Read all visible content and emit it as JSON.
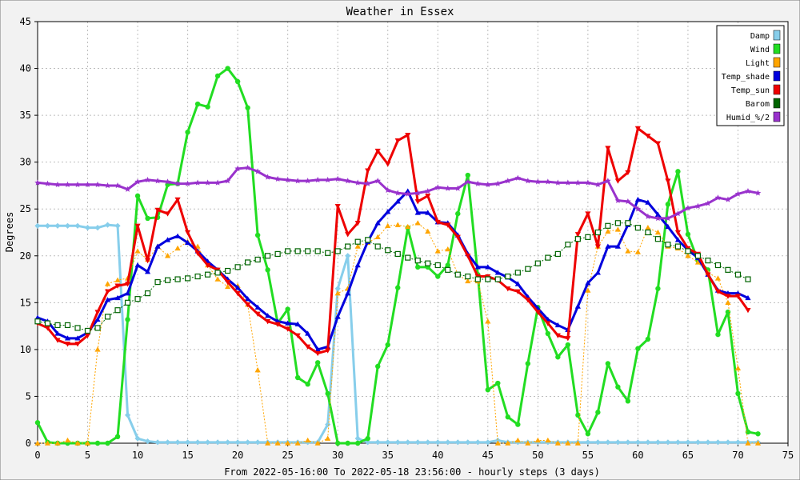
{
  "chart_data": {
    "type": "line",
    "title": "Weather in Essex",
    "xlabel": "From 2022-05-16:00 To 2022-05-18 23:56:00 - hourly steps (3 days)",
    "ylabel": "Degrees",
    "xlim": [
      0,
      75
    ],
    "ylim": [
      0,
      45
    ],
    "xticks": [
      0,
      5,
      10,
      15,
      20,
      25,
      30,
      35,
      40,
      45,
      50,
      55,
      60,
      65,
      70,
      75
    ],
    "yticks": [
      0,
      5,
      10,
      15,
      20,
      25,
      30,
      35,
      40,
      45
    ],
    "grid": true,
    "legend_position": "top-right",
    "series": [
      {
        "name": "Damp",
        "color": "#87ceeb",
        "marker": "diamond",
        "dash": false,
        "width": 3,
        "values": [
          23.2,
          23.2,
          23.2,
          23.2,
          23.2,
          23.0,
          23.0,
          23.3,
          23.2,
          3.0,
          0.5,
          0.2,
          0.1,
          0.1,
          0.1,
          0.1,
          0.1,
          0.1,
          0.1,
          0.1,
          0.1,
          0.1,
          0.1,
          0.1,
          0.1,
          0.1,
          0.1,
          0.1,
          0.1,
          2.0,
          16.5,
          20.0,
          0.5,
          0.1,
          0.1,
          0.1,
          0.1,
          0.1,
          0.1,
          0.1,
          0.1,
          0.1,
          0.1,
          0.1,
          0.1,
          0.1,
          0.3,
          0.1,
          0.1,
          0.1,
          0.1,
          0.1,
          0.1,
          0.1,
          0.1,
          0.1,
          0.1,
          0.1,
          0.1,
          0.1,
          0.1,
          0.1,
          0.1,
          0.1,
          0.1,
          0.1,
          0.1,
          0.1,
          0.1,
          0.1,
          0.1,
          0.1,
          0.1
        ]
      },
      {
        "name": "Wind",
        "color": "#22dd22",
        "marker": "circle",
        "dash": false,
        "width": 3,
        "values": [
          2.2,
          0.1,
          0.0,
          0.0,
          0.0,
          0.0,
          0.0,
          0.0,
          0.7,
          13.2,
          26.4,
          24.0,
          24.1,
          27.6,
          27.7,
          33.2,
          36.2,
          35.9,
          39.2,
          40.0,
          38.6,
          35.8,
          22.2,
          18.5,
          12.8,
          14.3,
          7.0,
          6.3,
          8.6,
          5.3,
          0.0,
          0.0,
          0.0,
          0.5,
          8.2,
          10.5,
          16.6,
          23.0,
          18.8,
          18.8,
          17.8,
          19.0,
          24.5,
          28.6,
          18.0,
          5.7,
          6.4,
          2.8,
          2.0,
          8.5,
          14.5,
          11.7,
          9.2,
          10.5,
          3.0,
          1.0,
          3.3,
          8.5,
          6.0,
          4.5,
          10.1,
          11.1,
          16.5,
          25.5,
          29.0,
          22.3,
          19.5,
          18.5,
          11.6,
          14.0,
          5.3,
          1.2,
          1.0
        ]
      },
      {
        "name": "Light",
        "color": "#ffa500",
        "marker": "triangle",
        "dash": true,
        "width": 1,
        "values": [
          0.0,
          0.0,
          0.0,
          0.3,
          0.0,
          0.0,
          10.0,
          17.0,
          17.4,
          17.6,
          20.5,
          19.6,
          21.0,
          20.0,
          20.8,
          21.5,
          21.0,
          19.0,
          17.5,
          16.7,
          16.8,
          14.8,
          7.8,
          0.0,
          0.0,
          0.0,
          0.0,
          0.3,
          0.0,
          0.5,
          16.0,
          16.5,
          21.0,
          21.4,
          22.0,
          23.2,
          23.3,
          23.1,
          23.5,
          22.6,
          20.5,
          20.7,
          18.0,
          17.3,
          17.3,
          13.0,
          0.0,
          0.0,
          0.3,
          0.0,
          0.3,
          0.3,
          0.0,
          0.0,
          0.0,
          16.3,
          21.0,
          22.6,
          22.8,
          20.5,
          20.4,
          23.0,
          22.5,
          21.0,
          20.8,
          20.0,
          19.3,
          18.2,
          17.6,
          15.0,
          8.0,
          0.0,
          0.0
        ]
      },
      {
        "name": "Temp_shade",
        "color": "#0000dd",
        "marker": "triangle",
        "dash": false,
        "width": 3,
        "values": [
          13.4,
          13.0,
          11.7,
          11.2,
          11.2,
          11.8,
          13.2,
          15.3,
          15.5,
          16.0,
          19.0,
          18.3,
          21.0,
          21.7,
          22.1,
          21.4,
          20.5,
          19.4,
          18.5,
          17.5,
          16.6,
          15.4,
          14.5,
          13.6,
          13.0,
          12.8,
          12.7,
          11.7,
          10.0,
          10.3,
          13.5,
          16.0,
          19.0,
          21.5,
          23.5,
          24.7,
          25.8,
          26.9,
          24.6,
          24.6,
          23.6,
          23.5,
          22.2,
          20.2,
          18.8,
          18.8,
          18.2,
          17.7,
          17.0,
          15.6,
          14.4,
          13.2,
          12.6,
          12.1,
          14.6,
          17.1,
          18.2,
          21.0,
          21.0,
          23.3,
          26.0,
          25.7,
          24.4,
          23.1,
          21.7,
          20.6,
          19.8,
          18.0,
          16.3,
          16.0,
          16.0,
          15.5
        ]
      },
      {
        "name": "Temp_sun",
        "color": "#ee0000",
        "marker": "triangle-down",
        "dash": false,
        "width": 3,
        "values": [
          12.8,
          12.3,
          11.0,
          10.6,
          10.6,
          11.5,
          14.0,
          16.2,
          16.8,
          17.0,
          23.2,
          19.5,
          24.9,
          24.5,
          26.0,
          22.5,
          20.3,
          19.0,
          18.5,
          17.2,
          16.0,
          14.8,
          13.8,
          13.0,
          12.7,
          12.2,
          11.5,
          10.3,
          9.6,
          9.9,
          25.3,
          22.3,
          23.5,
          29.1,
          31.2,
          29.8,
          32.3,
          32.9,
          25.8,
          26.4,
          23.6,
          23.3,
          22.0,
          20.0,
          17.8,
          17.8,
          17.4,
          16.5,
          16.2,
          15.3,
          14.0,
          12.8,
          11.5,
          11.2,
          22.3,
          24.5,
          21.0,
          31.5,
          28.0,
          28.9,
          33.6,
          32.8,
          32.0,
          28.0,
          22.5,
          20.8,
          20.2,
          18.0,
          16.2,
          15.7,
          15.7,
          14.2
        ]
      },
      {
        "name": "Barom",
        "color": "#006400",
        "marker": "square",
        "dash": true,
        "width": 1,
        "values": [
          13.0,
          12.8,
          12.6,
          12.6,
          12.3,
          12.0,
          12.3,
          13.5,
          14.2,
          15.0,
          15.4,
          16.0,
          17.2,
          17.4,
          17.5,
          17.6,
          17.8,
          18.0,
          18.2,
          18.4,
          18.8,
          19.3,
          19.6,
          20.0,
          20.2,
          20.5,
          20.5,
          20.5,
          20.5,
          20.3,
          20.5,
          21.0,
          21.5,
          21.7,
          21.0,
          20.6,
          20.2,
          19.8,
          19.5,
          19.2,
          19.0,
          18.5,
          18.0,
          17.8,
          17.5,
          17.5,
          17.5,
          17.8,
          18.2,
          18.6,
          19.2,
          19.8,
          20.2,
          21.2,
          21.8,
          22.0,
          22.5,
          23.2,
          23.5,
          23.5,
          23.0,
          22.5,
          21.8,
          21.2,
          21.0,
          20.5,
          20.0,
          19.5,
          19.0,
          18.5,
          18.0,
          17.5
        ]
      },
      {
        "name": "Humid_%/2",
        "color": "#9932cc",
        "marker": "star",
        "dash": false,
        "width": 3,
        "values": [
          27.8,
          27.7,
          27.6,
          27.6,
          27.6,
          27.6,
          27.6,
          27.5,
          27.5,
          27.1,
          27.9,
          28.1,
          28.0,
          27.9,
          27.7,
          27.7,
          27.8,
          27.8,
          27.8,
          28.0,
          29.3,
          29.4,
          29.0,
          28.4,
          28.2,
          28.1,
          28.0,
          28.0,
          28.1,
          28.1,
          28.2,
          28.0,
          27.8,
          27.7,
          28.0,
          27.0,
          26.7,
          26.6,
          26.7,
          26.9,
          27.3,
          27.2,
          27.2,
          27.9,
          27.7,
          27.6,
          27.7,
          28.0,
          28.3,
          28.0,
          27.9,
          27.9,
          27.8,
          27.8,
          27.8,
          27.8,
          27.6,
          28.0,
          25.9,
          25.8,
          25.0,
          24.2,
          24.0,
          24.0,
          24.5,
          25.1,
          25.3,
          25.6,
          26.2,
          26.0,
          26.6,
          26.9,
          26.7
        ]
      }
    ]
  }
}
